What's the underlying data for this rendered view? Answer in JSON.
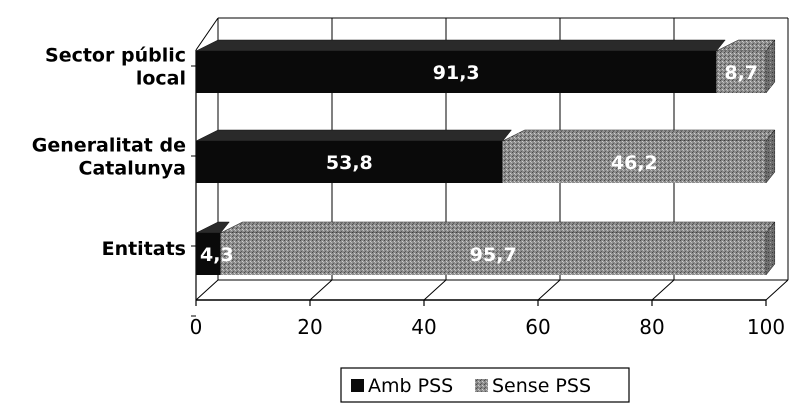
{
  "chart_data": {
    "type": "bar",
    "orientation": "horizontal",
    "stacked": true,
    "style": "3d",
    "categories": [
      "Sector públic local",
      "Generalitat de Catalunya",
      "Entitats"
    ],
    "category_lines": [
      [
        "Sector públic",
        "local"
      ],
      [
        "Generalitat de",
        "Catalunya"
      ],
      [
        "Entitats"
      ]
    ],
    "series": [
      {
        "name": "Amb PSS",
        "values": [
          91.3,
          53.8,
          4.3
        ],
        "labels": [
          "91,3",
          "53,8",
          "4,3"
        ]
      },
      {
        "name": "Sense PSS",
        "values": [
          8.7,
          46.2,
          95.7
        ],
        "labels": [
          "8,7",
          "46,2",
          "95,7"
        ]
      }
    ],
    "xlim": [
      0,
      100
    ],
    "xticks": [
      "0",
      "20",
      "40",
      "60",
      "80",
      "100"
    ],
    "grid": true,
    "legend": "bottom-center",
    "colors": {
      "amb": "#0a0a0a",
      "sense": "#8c8c8c"
    }
  }
}
